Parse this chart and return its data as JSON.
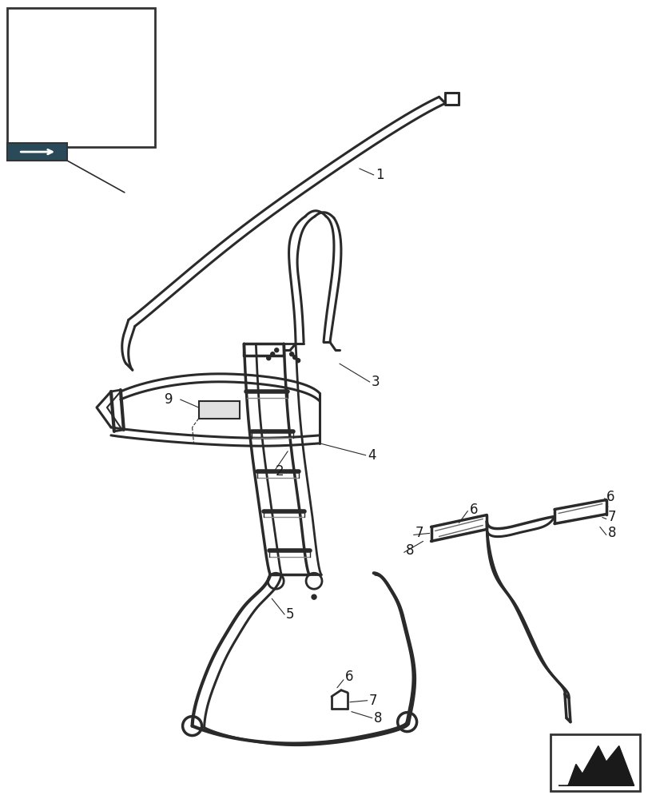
{
  "background_color": "#ffffff",
  "line_color": "#2a2a2a",
  "label_color": "#1a1a1a",
  "fig_width": 8.12,
  "fig_height": 10.0,
  "dpi": 100,
  "lw_main": 2.0,
  "lw_thin": 1.2,
  "lw_thick": 2.8
}
